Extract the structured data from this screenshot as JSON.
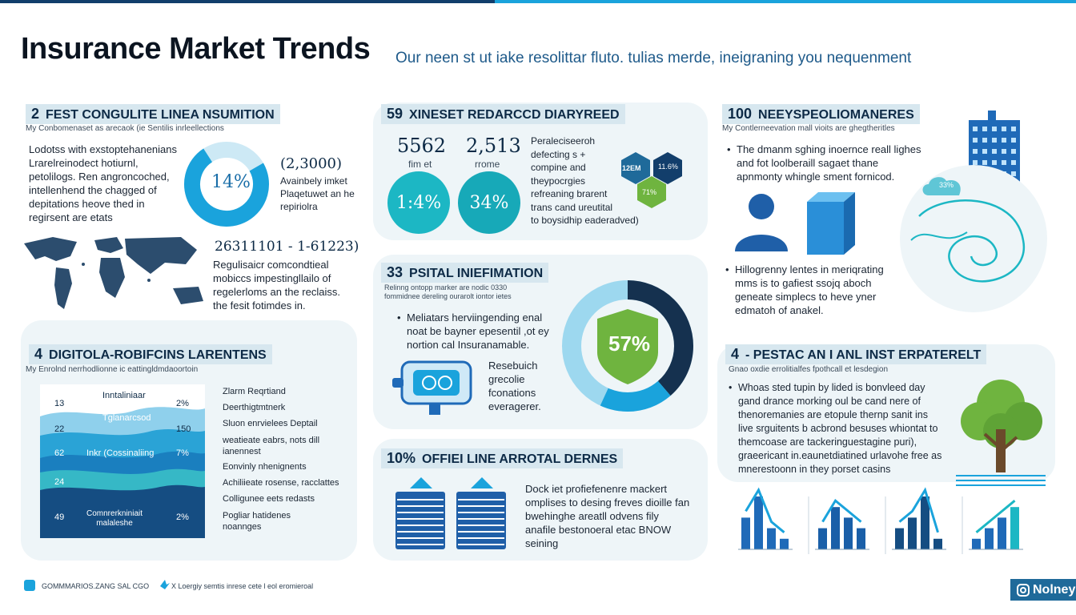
{
  "header": {
    "title": "Insurance Market Trends",
    "subtitle": "Our neen st ut iake resolittar fluto. tulias merde, ineigraning you nequenment"
  },
  "section1": {
    "number": "2",
    "heading": "FEST CONGULITE LINEA NSUMITION",
    "caption": "My Conbomenaset as arecaok (ie Sentilis inrleellections",
    "body": "Lodotss with exstoptehanenians\nLrarelreinodect hotiurnl,\npetolilogs. Ren angroncoched,\nintellenhend the chagged of\ndepitations heove thed in\nregirsent are etats",
    "donut_value": "14%",
    "stat_value": "(2,3000)",
    "stat_text": "Avainbely imket\nPlaqetuwet an he\nrepiriolra",
    "range": "26311101 - 1-61223)",
    "range_text": "Regulisaicr comcondtieal\nmobiccs impestingllailo of\nregelerloms an the reclaiss.\nthe fesit fotimdes in."
  },
  "section2": {
    "number": "59",
    "heading": "XINESET REDARCCD DIARYREED",
    "stat1_value": "5562",
    "stat1_label": "fim et",
    "stat2_value": "2,513",
    "stat2_label": "rrome",
    "circle1_value": "1:4%",
    "circle2_value": "34%",
    "body": "Peraleciseeroh\ndefecting s +\ncompine and\ntheypocrgies\nrefreaning brarent\ntrans cand ureutital\nto boysidhip eaderadved)",
    "hex1": "12EM",
    "hex2": "11.6%",
    "hex3": "71%"
  },
  "section3": {
    "number": "100",
    "heading": "NEEYSPEOLIOMANERES",
    "caption": "My Contlerneevation mall vioits are ghegtheritles",
    "body1": "The dmanm sghing inoernce reall lighes\nand fot loolberaill sagaet thane\napnmonty whingle sment fornicod.",
    "body2": "Hillogrenny lentes in meriqrating\nmms is to gafiest ssojq aboch\ngeneate simplecs to heve yner\nedmatoh of anakel.",
    "cloud_label": "33%"
  },
  "section4": {
    "number": "33",
    "heading": "PSITAL INIEFIMATION",
    "caption": "Relinng ontopp marker are nodic 0330\nfommidnee dereling ourarolt iontor ietes",
    "body": "Meliatars herviingending enal\nnoat be bayner epesentil ,ot ey\nnortion cal Insuranamable.",
    "body2": "Resebuich\ngrecolie\nfconations\neveragerer.",
    "donut_value": "57%"
  },
  "section5": {
    "number": "4",
    "heading": "DIGITOLA-ROBIFCINS LARENTENS",
    "caption": "My Enrolnd nerrhodlionne ic eattingldmdaoortoin",
    "layers": [
      {
        "num": "13",
        "label": "Inntaliniaar",
        "pct": "2%"
      },
      {
        "num": "22",
        "label": "Tglanarcsod",
        "pct": "150"
      },
      {
        "num": "62",
        "label": "Inkr (Cossinaliing",
        "pct": "7%"
      },
      {
        "num": "24",
        "label": "",
        "pct": ""
      },
      {
        "num": "49",
        "label": "Comnrerkniniait\nmalaleshe",
        "pct": "2%"
      }
    ],
    "legend": [
      "Zlarm Reqrtiand",
      "Deerthigtmtnerk",
      "Sluon enrvielees Deptail",
      "weatieate eabrs, nots dill\nianennest",
      "Eonvinly nhenignents",
      "Achiliieate rosense, racclattes",
      "Colligunee eets redasts",
      "Pogliar hatidenes\nnoannges"
    ]
  },
  "section6": {
    "number": "10%",
    "heading": "OFFIEI LINE ARROTAL DERNES",
    "body": "Dock iet profiefenenre mackert\nomplises to desing freves dioille fan\nbwehinghe areatll odvens fily\nanafile bestonoeral etac BNOW\nseining"
  },
  "section7": {
    "number": "4",
    "heading": "- PESTAC AN I ANL INST ERPATERELT",
    "caption": "Gnao oxdie errolitialfes fpothcall et lesdegion",
    "body": "Whoas sted tupin by lided is bonvleed day\ngand drance morking oul be cand nere of\nthenoremanies are etopule thernp sanit ins\nlive srguitents b acbrond besuses whiontat to\nthemcoase are tackeringuestagine puri),\ngraeericant in.eaunetdiatined urlavohe free as\nmnerestoonn in they porset casins"
  },
  "chart_data": {
    "type": "bar",
    "series": [
      {
        "values": [
          3,
          5,
          2,
          1
        ]
      },
      {
        "values": [
          2,
          4,
          3,
          2
        ]
      },
      {
        "values": [
          2,
          3,
          5,
          1
        ]
      },
      {
        "values": [
          1,
          2,
          3,
          4
        ]
      }
    ]
  },
  "footer": {
    "left": "GOMMMARIOS.ZANG SAL CGO",
    "right": "X Loergiy semtis inrese cete l eol eromieroal",
    "badge": "Nolney"
  },
  "colors": {
    "navy": "#123e6b",
    "blue": "#1aa3dc",
    "teal": "#1cb7c4",
    "green": "#6fb43f",
    "panel": "#eef5f8"
  }
}
